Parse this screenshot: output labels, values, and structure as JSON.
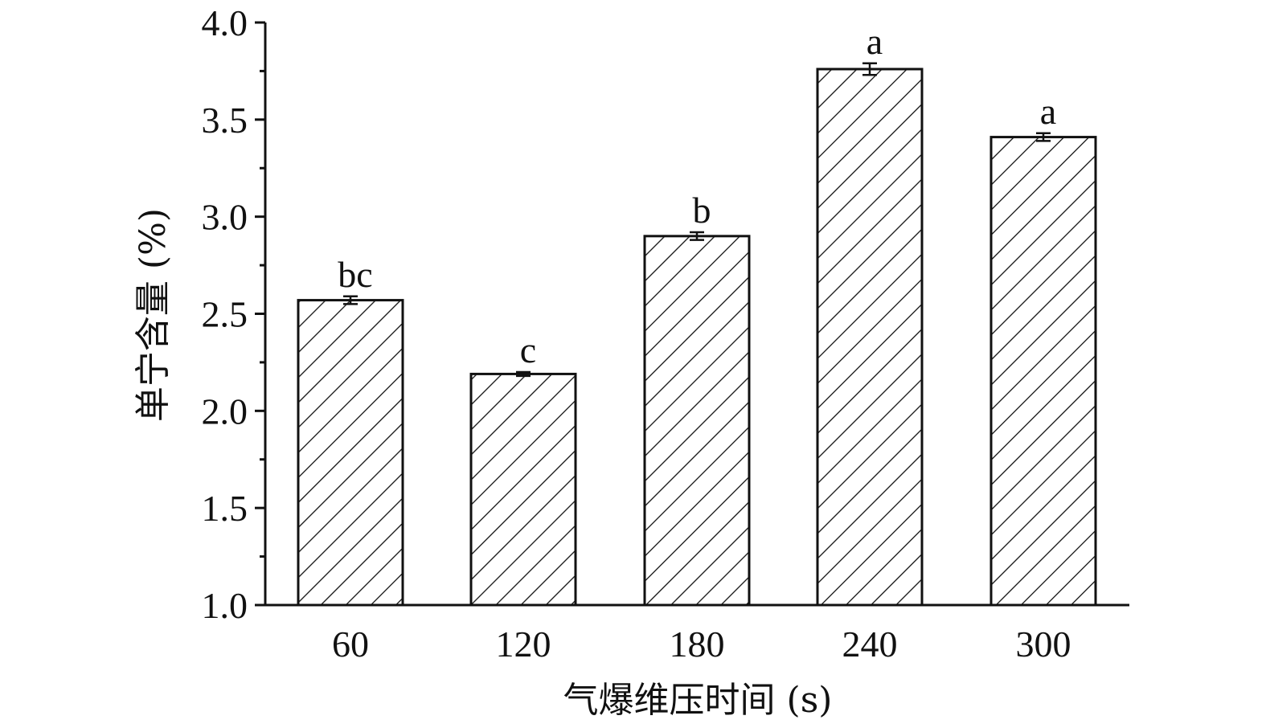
{
  "chart_data": {
    "type": "bar",
    "title": "",
    "xlabel": "气爆维压时间 (s)",
    "ylabel": "单宁含量 (%)",
    "categories": [
      "60",
      "120",
      "180",
      "240",
      "300"
    ],
    "values": [
      2.57,
      2.19,
      2.9,
      3.76,
      3.41
    ],
    "errors": [
      0.02,
      0.01,
      0.02,
      0.03,
      0.02
    ],
    "significance_labels": [
      "bc",
      "c",
      "b",
      "a",
      "a"
    ],
    "ylim": [
      1.0,
      4.0
    ],
    "yticks": [
      "1.0",
      "1.5",
      "2.0",
      "2.5",
      "3.0",
      "3.5",
      "4.0"
    ],
    "ytick_values": [
      1.0,
      1.5,
      2.0,
      2.5,
      3.0,
      3.5,
      4.0
    ],
    "grid": false,
    "legend": "none",
    "bar_fill": "diagonal-hatch",
    "colors": {
      "bar_stroke": "#111111",
      "hatch": "#111111",
      "axis": "#111111",
      "background": "#ffffff"
    }
  }
}
